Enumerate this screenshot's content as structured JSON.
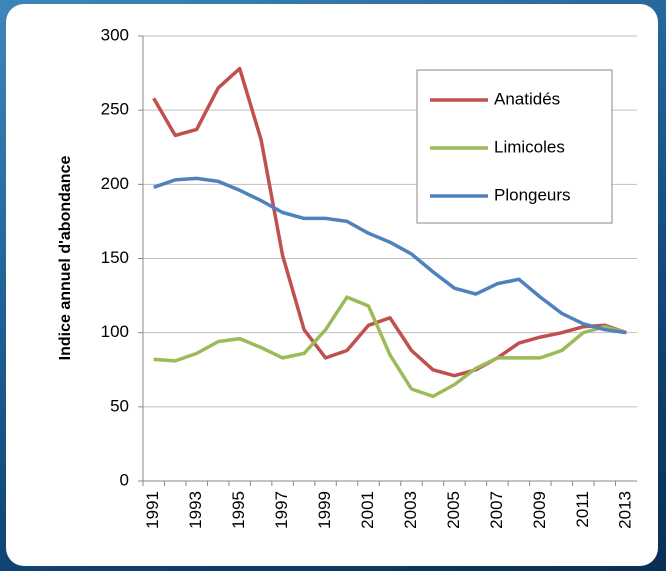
{
  "chart_data": {
    "type": "line",
    "y_label": "Indice annuel d'abondance",
    "categories": [
      "1991",
      null,
      "1993",
      null,
      "1995",
      null,
      "1997",
      null,
      "1999",
      null,
      "2001",
      null,
      "2003",
      null,
      "2005",
      null,
      "2007",
      null,
      "2009",
      null,
      "2011",
      null,
      "2013"
    ],
    "series": [
      {
        "name": "Anatidés",
        "color": "#c0504d",
        "values": [
          258,
          233,
          237,
          265,
          278,
          230,
          152,
          102,
          83,
          88,
          105,
          110,
          88,
          75,
          71,
          75,
          83,
          93,
          97,
          100,
          104,
          105,
          100
        ]
      },
      {
        "name": "Limicoles",
        "color": "#9bbb59",
        "values": [
          82,
          81,
          86,
          94,
          96,
          90,
          83,
          86,
          102,
          124,
          118,
          85,
          62,
          57,
          65,
          76,
          83,
          83,
          83,
          88,
          100,
          104,
          100
        ]
      },
      {
        "name": "Plongeurs",
        "color": "#4f81bd",
        "values": [
          198,
          203,
          204,
          202,
          196,
          189,
          181,
          177,
          177,
          175,
          167,
          161,
          153,
          141,
          130,
          126,
          133,
          136,
          124,
          113,
          106,
          102,
          100
        ]
      }
    ],
    "ylim": [
      0,
      300
    ],
    "yticks": [
      0,
      50,
      100,
      150,
      200,
      250,
      300
    ],
    "grid": true
  }
}
